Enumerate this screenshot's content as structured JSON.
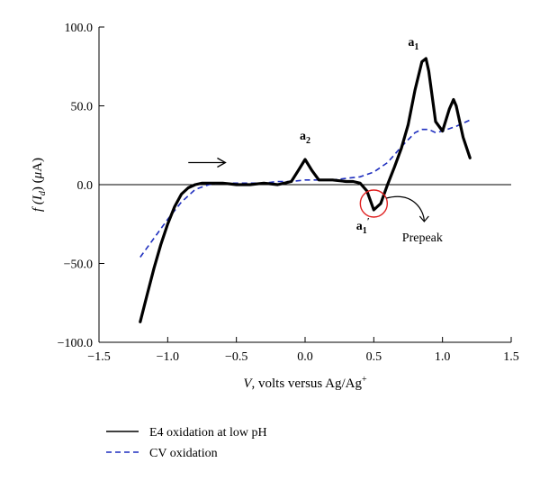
{
  "chart_data": {
    "type": "line",
    "xlabel": {
      "italic": "V",
      "rest": ", volts versus Ag/Ag",
      "sup": "+"
    },
    "ylabel": {
      "pre": "f (",
      "italic": "I",
      "sub": "d",
      "post": ") (",
      "mu": "μ",
      "unit": "A)"
    },
    "xlim": [
      -1.5,
      1.5
    ],
    "ylim": [
      -100,
      100
    ],
    "x_ticks": [
      -1.5,
      -1.0,
      -0.5,
      0.0,
      0.5,
      1.0,
      1.5
    ],
    "x_tick_labels": [
      "−1.5",
      "−1.0",
      "−0.5",
      "0.0",
      "0.5",
      "1.0",
      "1.5"
    ],
    "y_ticks": [
      100,
      50,
      0,
      -50,
      -100
    ],
    "y_tick_labels": [
      "100.0",
      "50.0",
      "0.0",
      "−50.0",
      "−100.0"
    ],
    "grid": false,
    "legend_position": "bottom-left",
    "colors": {
      "e4": "#000000",
      "cv": "#1f2fbf",
      "circle": "#e02020"
    },
    "series": [
      {
        "name": "E4 oxidation at low pH",
        "style": "solid",
        "x": [
          -1.2,
          -1.15,
          -1.1,
          -1.05,
          -1.0,
          -0.95,
          -0.9,
          -0.85,
          -0.8,
          -0.75,
          -0.7,
          -0.6,
          -0.5,
          -0.4,
          -0.3,
          -0.2,
          -0.15,
          -0.1,
          -0.05,
          0.0,
          0.05,
          0.1,
          0.2,
          0.3,
          0.35,
          0.4,
          0.45,
          0.5,
          0.55,
          0.6,
          0.65,
          0.7,
          0.75,
          0.8,
          0.85,
          0.88,
          0.9,
          0.95,
          1.0,
          1.05,
          1.08,
          1.1,
          1.15,
          1.2
        ],
        "y": [
          -87,
          -70,
          -53,
          -38,
          -25,
          -14,
          -6,
          -2,
          0,
          1,
          1,
          1,
          0,
          0,
          1,
          0,
          1,
          2,
          9,
          16,
          9,
          3,
          3,
          2,
          2,
          1,
          -4,
          -16,
          -12,
          0,
          11,
          23,
          38,
          60,
          78,
          80,
          72,
          40,
          34,
          48,
          54,
          50,
          30,
          17
        ]
      },
      {
        "name": "CV oxidation",
        "style": "dashed",
        "x": [
          -1.2,
          -1.1,
          -1.0,
          -0.9,
          -0.8,
          -0.7,
          -0.6,
          -0.5,
          -0.4,
          -0.3,
          -0.2,
          -0.1,
          0.0,
          0.1,
          0.2,
          0.3,
          0.4,
          0.5,
          0.6,
          0.7,
          0.8,
          0.85,
          0.9,
          0.95,
          1.0,
          1.1,
          1.2
        ],
        "y": [
          -46,
          -34,
          -22,
          -11,
          -3,
          0,
          1,
          1,
          1,
          1,
          2,
          2,
          3,
          3,
          3,
          4,
          5,
          8,
          14,
          24,
          33,
          35,
          35,
          33,
          34,
          37,
          41
        ]
      }
    ],
    "annotations": {
      "a2": {
        "base": "a",
        "sub": "2",
        "x": 0.0,
        "y": 16
      },
      "a1": {
        "base": "a",
        "sub": "1",
        "x": 0.88,
        "y": 80
      },
      "a1prime": {
        "base": "a",
        "sub": "1",
        "prime": "′",
        "x": 0.5,
        "y": -16
      },
      "prepeak": {
        "text": "Prepeak"
      }
    }
  }
}
